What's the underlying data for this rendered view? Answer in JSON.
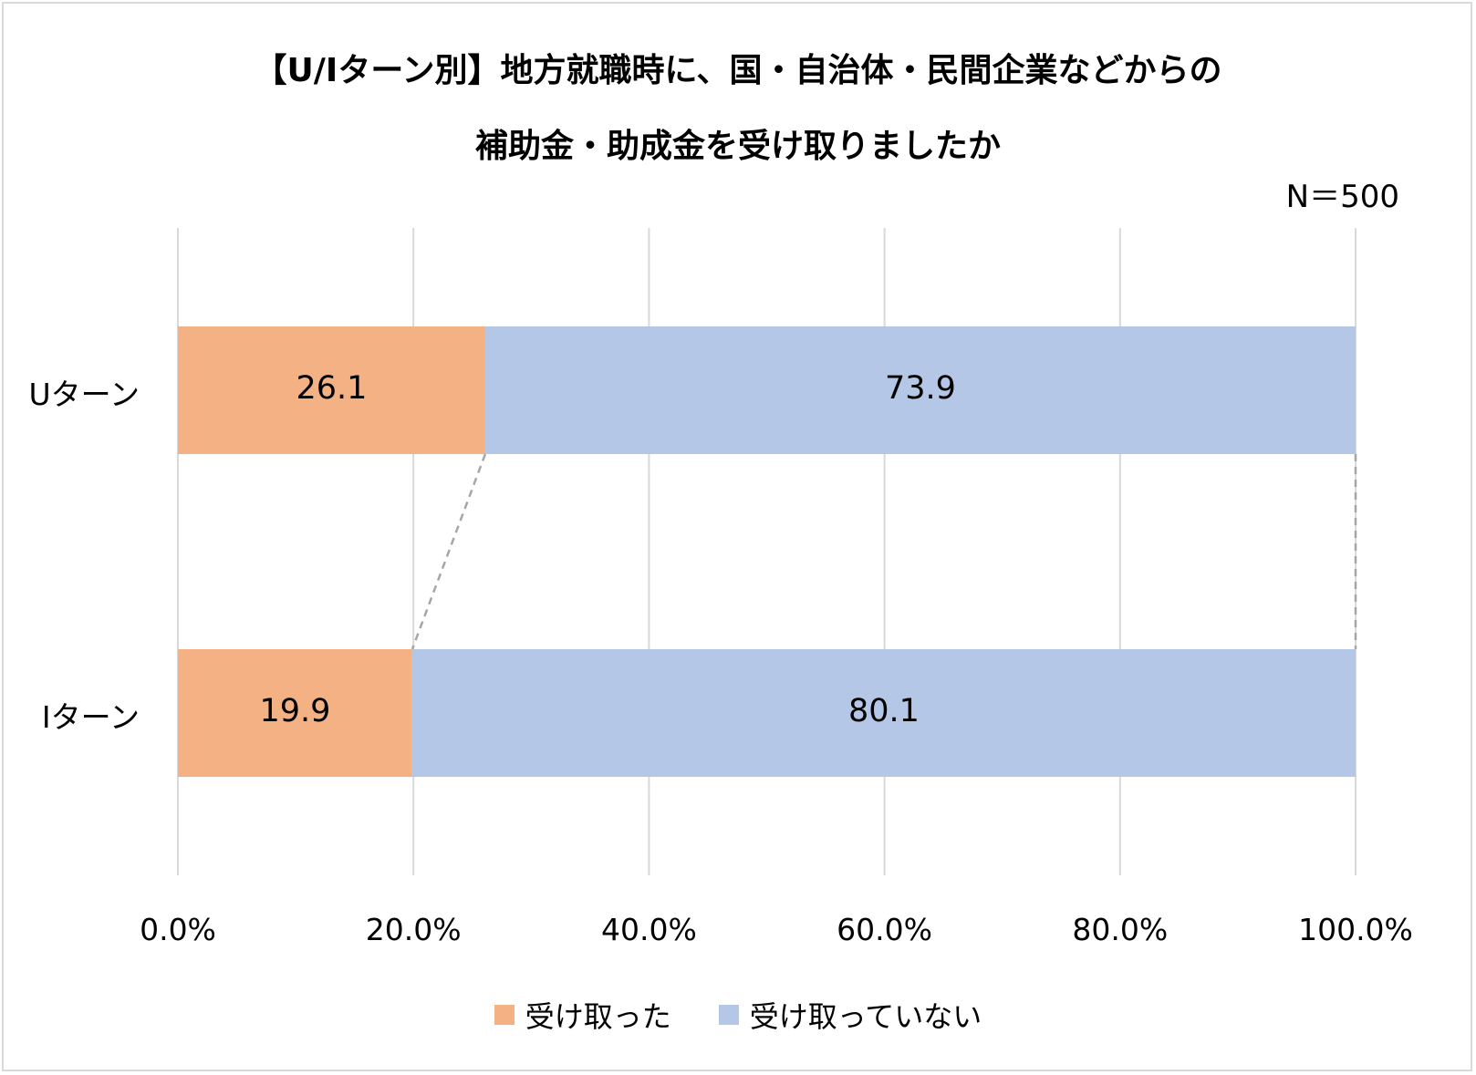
{
  "chart_data": {
    "type": "bar",
    "orientation": "horizontal",
    "stacked": true,
    "title": "【U/Iターン別】地方就職時に、国・自治体・民間企業などからの",
    "title_line2": "補助金・助成金を受け取りましたか",
    "sample_size": "N＝500",
    "categories": [
      "Uターン",
      "Iターン"
    ],
    "series": [
      {
        "name": "受け取った",
        "values": [
          26.1,
          19.9
        ],
        "color": "#f4b183"
      },
      {
        "name": "受け取っていない",
        "values": [
          73.9,
          80.1
        ],
        "color": "#b4c7e7"
      }
    ],
    "value_labels": [
      "26.1",
      "73.9",
      "19.9",
      "80.1"
    ],
    "xlim": [
      0,
      100
    ],
    "x_ticks": [
      "0.0%",
      "20.0%",
      "40.0%",
      "60.0%",
      "80.0%",
      "100.0%"
    ],
    "grid": true,
    "series_lines": true,
    "legend": "bottom",
    "gridline_color": "#d9d9d9",
    "series_line_color": "#a6a6a6"
  }
}
